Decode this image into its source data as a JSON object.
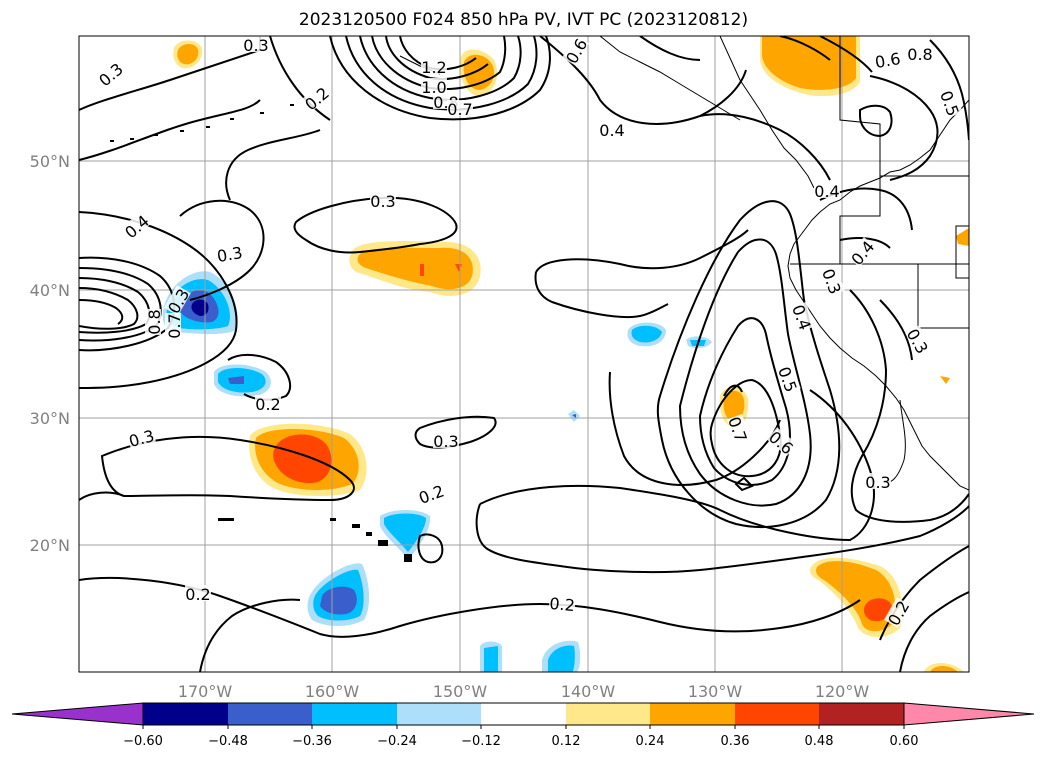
{
  "title": "2023120500 F024 850 hPa PV, IVT PC (2023120812)",
  "lat_labels": [
    "50°N",
    "40°N",
    "30°N",
    "20°N"
  ],
  "lon_labels": [
    "170°W",
    "160°W",
    "150°W",
    "140°W",
    "130°W",
    "120°W"
  ],
  "colorbar": {
    "ticks": [
      "−0.60",
      "−0.48",
      "−0.36",
      "−0.24",
      "−0.12",
      "0.12",
      "0.24",
      "0.36",
      "0.48",
      "0.60"
    ],
    "colors": [
      "#9932CC",
      "#00008B",
      "#3A5FCD",
      "#00BFFF",
      "#ADDFFA",
      "#FFFFFF",
      "#FFE88A",
      "#FFA500",
      "#FF4500",
      "#B22222",
      "#FF88AA"
    ]
  },
  "contour_labels": [
    "0.3",
    "0.3",
    "0.4",
    "0.3",
    "0.3",
    "0.2",
    "0.3",
    "0.2",
    "0.2",
    "0.3",
    "0.3",
    "0.2",
    "0.2",
    "1.2",
    "1.0",
    "0.8",
    "0.7",
    "0.4",
    "0.6",
    "0.8",
    "0.5",
    "0.4",
    "0.4",
    "0.3",
    "0.4",
    "0.5",
    "0.6",
    "0.7",
    "0.3",
    "0.3",
    "0.2",
    "0.8",
    "0.7",
    "0.6"
  ]
}
